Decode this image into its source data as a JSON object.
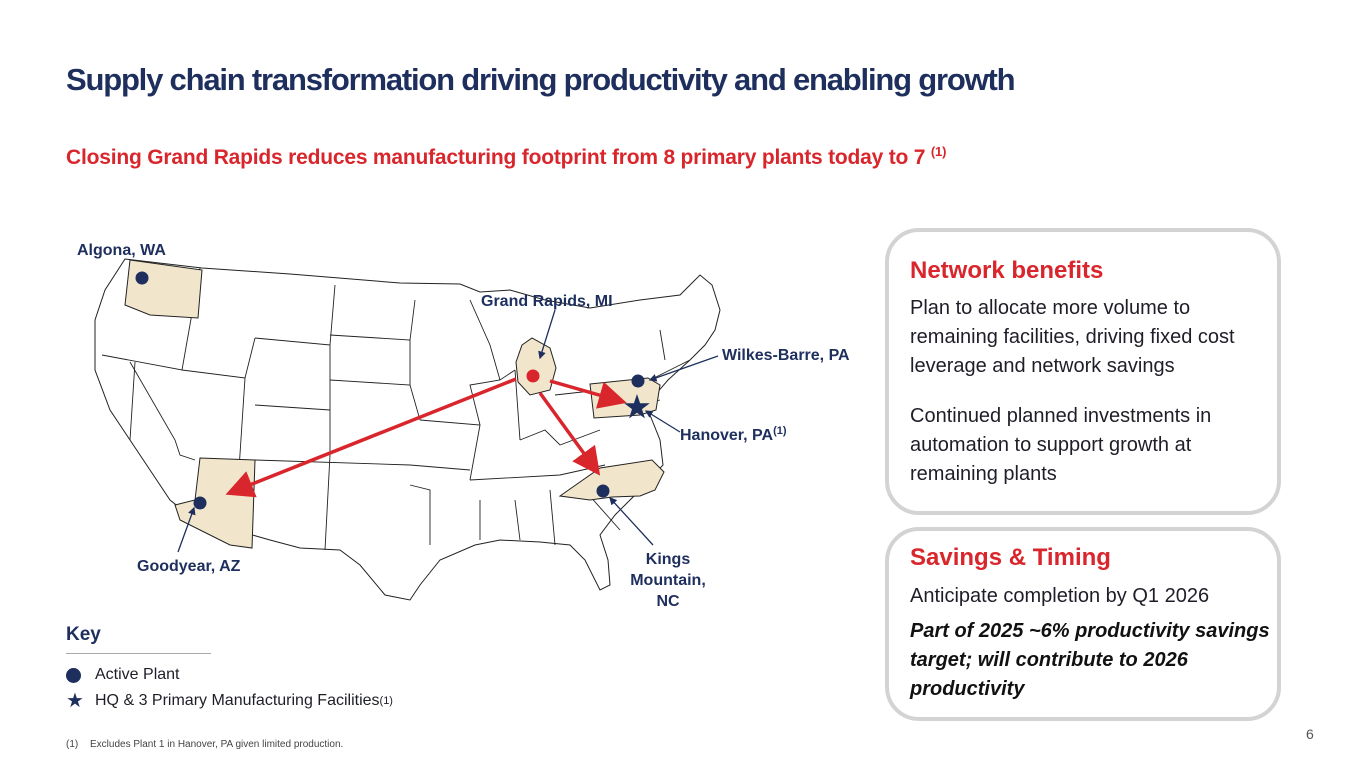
{
  "title": "Supply chain transformation driving productivity and enabling growth",
  "subtitle": {
    "text": "Closing Grand Rapids reduces manufacturing footprint from 8 primary plants today to 7",
    "note": "(1)"
  },
  "map": {
    "labels": {
      "algona": "Algona, WA",
      "grand_rapids": "Grand Rapids, MI",
      "wilkes_barre": "Wilkes-Barre, PA",
      "hanover": "Hanover, PA",
      "hanover_note": "(1)",
      "goodyear": "Goodyear, AZ",
      "kings_line1": "Kings",
      "kings_line2": "Mountain,",
      "kings_line3": "NC"
    },
    "colors": {
      "highlight_state": "#f1e6cc",
      "plant": "#1e2f5e",
      "closing_plant": "#d9262c",
      "arrow": "#d9262c"
    }
  },
  "key": {
    "title": "Key",
    "active_plant": "Active Plant",
    "hq_facilities": "HQ & 3 Primary Manufacturing Facilities",
    "hq_note": "(1)"
  },
  "footnote": {
    "num": "(1)",
    "text": "Excludes Plant 1 in Hanover, PA given limited production."
  },
  "page_number": "6",
  "benefits": {
    "heading": "Network benefits",
    "p1": "Plan to allocate more volume to remaining facilities, driving fixed cost leverage and network savings",
    "p2": "Continued planned investments in automation to support growth at remaining plants"
  },
  "savings": {
    "heading": "Savings & Timing",
    "p1": "Anticipate completion by Q1 2026",
    "p2": "Part of 2025 ~6% productivity savings target; will contribute to 2026 productivity"
  }
}
